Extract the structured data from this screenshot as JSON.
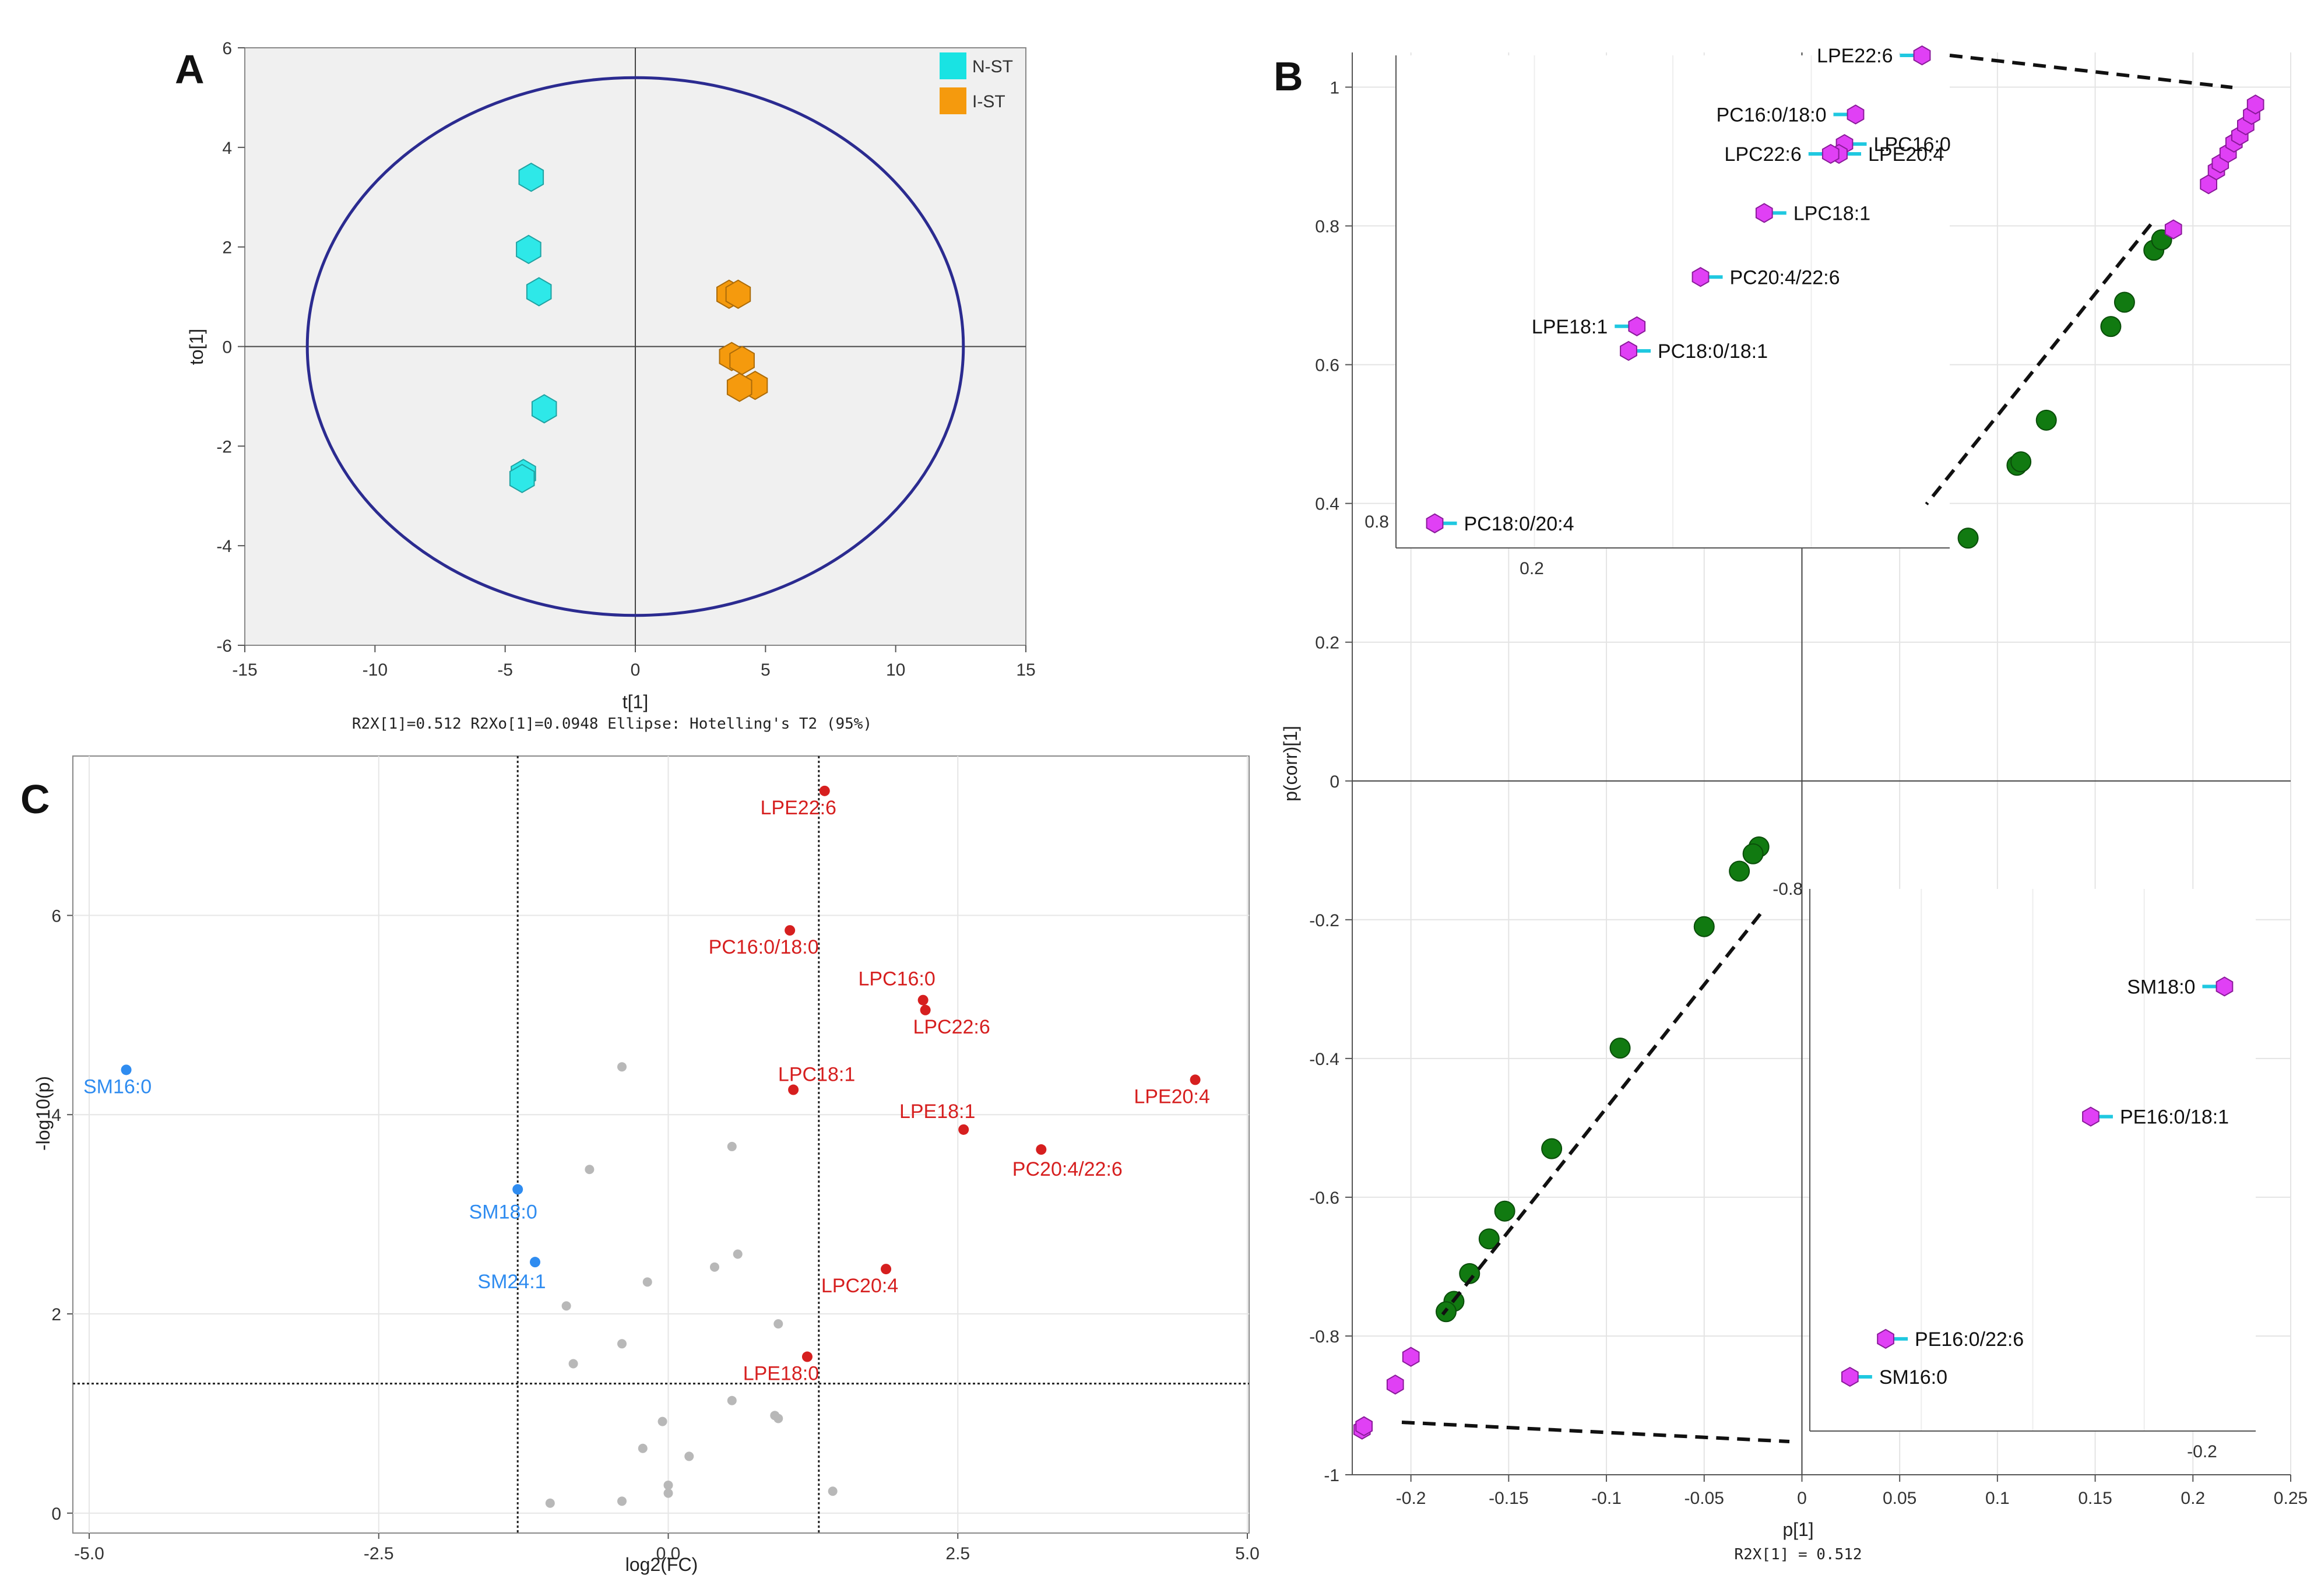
{
  "panels": {
    "a": "A",
    "b": "B",
    "c": "C"
  },
  "chart_data": [
    {
      "type": "scatter",
      "id": "A",
      "xlabel": "t[1]",
      "ylabel": "to[1]",
      "xlim": [
        -15,
        15
      ],
      "ylim": [
        -6,
        6
      ],
      "xticks": [
        -15,
        -10,
        -5,
        0,
        5,
        10,
        15
      ],
      "yticks": [
        -6,
        -4,
        -2,
        0,
        2,
        4,
        6
      ],
      "note": "R2X[1]=0.512  R2Xo[1]=0.0948  Ellipse: Hotelling's T2 (95%)",
      "ellipse": {
        "rx": 12.6,
        "ry": 5.4
      },
      "legend": [
        {
          "name": "N-ST",
          "color": "#19e3e3"
        },
        {
          "name": "I-ST",
          "color": "#f59a0d"
        }
      ],
      "series": [
        {
          "name": "N-ST",
          "color": "#2ee8e8",
          "x": [
            -4.0,
            -4.1,
            -3.7,
            -3.5,
            -4.3,
            -4.35
          ],
          "y": [
            3.4,
            1.95,
            1.1,
            -1.25,
            -2.55,
            -2.65
          ]
        },
        {
          "name": "I-ST",
          "color": "#f59a0d",
          "x": [
            3.6,
            3.95,
            3.7,
            4.1,
            4.6,
            4.0
          ],
          "y": [
            1.05,
            1.05,
            -0.2,
            -0.28,
            -0.78,
            -0.82
          ]
        }
      ]
    },
    {
      "type": "scatter",
      "id": "B",
      "xlabel": "p[1]",
      "ylabel": "p(corr)[1]",
      "note": "R2X[1] = 0.512",
      "xlim": [
        -0.23,
        0.25
      ],
      "ylim": [
        -1.0,
        1.05
      ],
      "xticks": [
        -0.2,
        -0.15,
        -0.1,
        -0.05,
        0,
        0.05,
        0.1,
        0.15,
        0.2,
        0.25
      ],
      "xtick_labels": [
        "-0.2",
        "-0.15",
        "-0.1",
        "-0.05",
        "0",
        "0.05",
        "0.1",
        "0.15",
        "0.2",
        "0.25"
      ],
      "yticks": [
        -1,
        -0.8,
        -0.6,
        -0.4,
        -0.2,
        0,
        0.2,
        0.4,
        0.6,
        0.8,
        1
      ],
      "ytick_labels": [
        "-1",
        "-0.8",
        "-0.6",
        "-0.4",
        "-0.2",
        "0",
        "0.2",
        "0.4",
        "0.6",
        "0.8",
        "1"
      ],
      "green_points": [
        [
          0.085,
          0.35
        ],
        [
          0.11,
          0.455
        ],
        [
          0.112,
          0.46
        ],
        [
          0.125,
          0.52
        ],
        [
          0.158,
          0.655
        ],
        [
          0.165,
          0.69
        ],
        [
          0.18,
          0.765
        ],
        [
          0.184,
          0.78
        ],
        [
          -0.022,
          -0.095
        ],
        [
          -0.025,
          -0.105
        ],
        [
          -0.032,
          -0.13
        ],
        [
          -0.05,
          -0.21
        ],
        [
          -0.093,
          -0.385
        ],
        [
          -0.128,
          -0.53
        ],
        [
          -0.152,
          -0.62
        ],
        [
          -0.16,
          -0.66
        ],
        [
          -0.17,
          -0.71
        ],
        [
          -0.178,
          -0.75
        ],
        [
          -0.182,
          -0.765
        ]
      ],
      "magenta_points": [
        [
          0.208,
          0.86
        ],
        [
          0.212,
          0.88
        ],
        [
          0.214,
          0.89
        ],
        [
          0.218,
          0.905
        ],
        [
          0.221,
          0.92
        ],
        [
          0.224,
          0.93
        ],
        [
          0.227,
          0.945
        ],
        [
          0.23,
          0.96
        ],
        [
          0.232,
          0.975
        ],
        [
          0.19,
          0.795
        ],
        [
          -0.2,
          -0.83
        ],
        [
          -0.208,
          -0.87
        ],
        [
          -0.225,
          -0.935
        ],
        [
          -0.224,
          -0.93
        ]
      ],
      "zoom_top": {
        "tick_label_x": "0.2",
        "tick_label_y": "0.8",
        "points": [
          {
            "label": "LPE22:6",
            "x": 0.95,
            "y": 1.0
          },
          {
            "label": "PC16:0/18:0",
            "x": 0.83,
            "y": 0.88
          },
          {
            "label": "LPC16:0",
            "x": 0.81,
            "y": 0.82
          },
          {
            "label": "LPE20:4",
            "x": 0.8,
            "y": 0.8
          },
          {
            "label": "LPC22:6",
            "x": 0.785,
            "y": 0.8
          },
          {
            "label": "LPC18:1",
            "x": 0.665,
            "y": 0.68
          },
          {
            "label": "PC20:4/22:6",
            "x": 0.55,
            "y": 0.55
          },
          {
            "label": "LPE18:1",
            "x": 0.435,
            "y": 0.45
          },
          {
            "label": "PC18:0/18:1",
            "x": 0.42,
            "y": 0.4
          },
          {
            "label": "PC18:0/20:4",
            "x": 0.07,
            "y": 0.05
          }
        ]
      },
      "zoom_bottom": {
        "tick_label_x": "-0.2",
        "tick_label_y": "-0.8",
        "points": [
          {
            "label": "SM18:0",
            "x": 0.93,
            "y": 0.82
          },
          {
            "label": "PE16:0/18:1",
            "x": 0.63,
            "y": 0.58
          },
          {
            "label": "PE16:0/22:6",
            "x": 0.17,
            "y": 0.17
          },
          {
            "label": "SM16:0",
            "x": 0.09,
            "y": 0.1
          }
        ]
      }
    },
    {
      "type": "scatter",
      "id": "C",
      "xlabel": "log2(FC)",
      "ylabel": "-log10(p)",
      "xlim": [
        -5.0,
        5.0
      ],
      "ylim": [
        -0.2,
        7.6
      ],
      "xticks": [
        -5.0,
        -2.5,
        0.0,
        2.5,
        5.0
      ],
      "xtick_labels": [
        "-5.0",
        "-2.5",
        "0.0",
        "2.5",
        "5.0"
      ],
      "yticks": [
        0,
        2,
        4,
        6
      ],
      "ytick_labels": [
        "0",
        "2",
        "4",
        "6"
      ],
      "thresholds": {
        "x": [
          -1.3,
          1.3
        ],
        "y": 1.3
      },
      "up": [
        {
          "label": "LPE22:6",
          "x": 1.35,
          "y": 7.25
        },
        {
          "label": "PC16:0/18:0",
          "x": 1.05,
          "y": 5.85
        },
        {
          "label": "LPC16:0",
          "x": 2.2,
          "y": 5.15
        },
        {
          "label": "LPC22:6",
          "x": 2.22,
          "y": 5.05
        },
        {
          "label": "LPC18:1",
          "x": 1.08,
          "y": 4.25
        },
        {
          "label": "LPE18:1",
          "x": 2.55,
          "y": 3.85
        },
        {
          "label": "LPE20:4",
          "x": 4.55,
          "y": 4.35
        },
        {
          "label": "PC20:4/22:6",
          "x": 3.22,
          "y": 3.65
        },
        {
          "label": "LPC20:4",
          "x": 1.88,
          "y": 2.45
        },
        {
          "label": "LPE18:0",
          "x": 1.2,
          "y": 1.57
        }
      ],
      "down": [
        {
          "label": "SM16:0",
          "x": -4.68,
          "y": 4.45
        },
        {
          "label": "SM18:0",
          "x": -1.3,
          "y": 3.25
        },
        {
          "label": "SM24:1",
          "x": -1.15,
          "y": 2.52
        }
      ],
      "ns": [
        [
          -0.4,
          4.48
        ],
        [
          0.55,
          3.68
        ],
        [
          -0.68,
          3.45
        ],
        [
          0.6,
          2.6
        ],
        [
          0.4,
          2.47
        ],
        [
          -0.18,
          2.32
        ],
        [
          -0.88,
          2.08
        ],
        [
          0.95,
          1.9
        ],
        [
          -0.4,
          1.7
        ],
        [
          -0.82,
          1.5
        ],
        [
          0.55,
          1.13
        ],
        [
          0.92,
          0.98
        ],
        [
          0.95,
          0.95
        ],
        [
          -0.05,
          0.92
        ],
        [
          -0.22,
          0.65
        ],
        [
          0.18,
          0.57
        ],
        [
          0.0,
          0.28
        ],
        [
          0.0,
          0.2
        ],
        [
          1.42,
          0.22
        ],
        [
          -1.02,
          0.1
        ],
        [
          -0.4,
          0.12
        ]
      ]
    }
  ]
}
